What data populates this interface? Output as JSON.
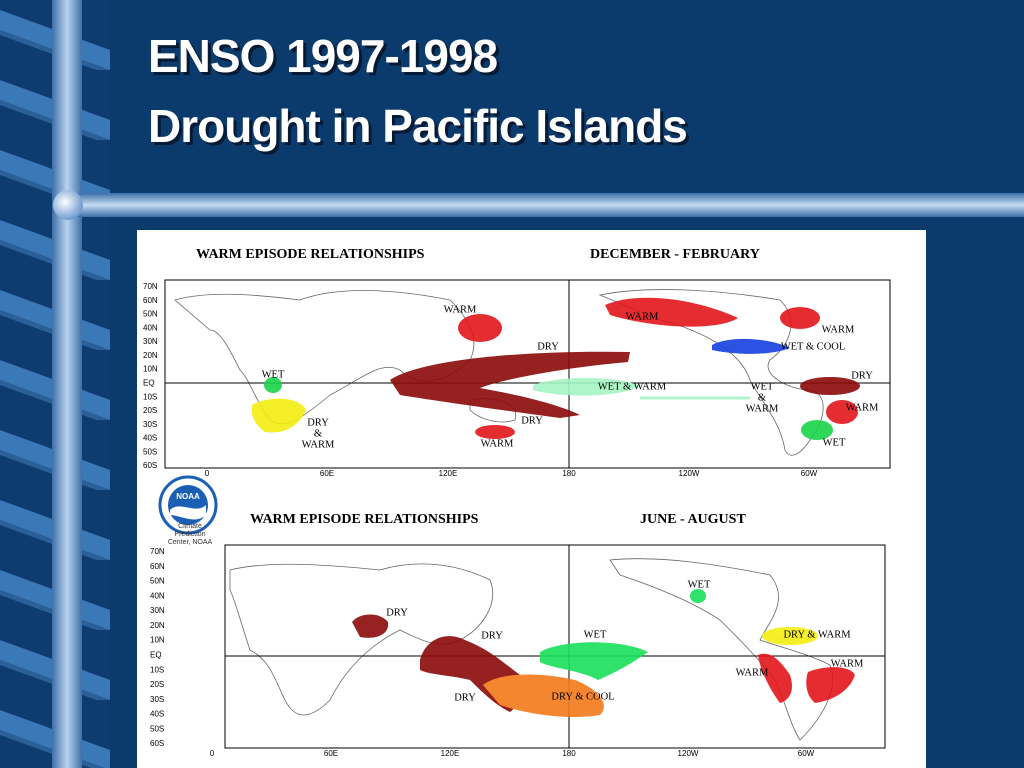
{
  "title": {
    "line1": "ENSO 1997-1998",
    "line2": "Drought in Pacific Islands"
  },
  "logo": {
    "name": "NOAA",
    "caption": [
      "Climate",
      "Prediction",
      "Center, NOAA"
    ]
  },
  "maps": [
    {
      "title": "WARM EPISODE RELATIONSHIPS",
      "season": "DECEMBER - FEBRUARY",
      "latitudes": [
        "70N",
        "60N",
        "50N",
        "40N",
        "30N",
        "20N",
        "10N",
        "EQ",
        "10S",
        "20S",
        "30S",
        "40S",
        "50S",
        "60S"
      ],
      "longitudes": [
        "0",
        "60E",
        "120E",
        "180",
        "120W",
        "60W"
      ],
      "regions": [
        {
          "lines": [
            "WARM"
          ]
        },
        {
          "lines": [
            "DRY"
          ]
        },
        {
          "lines": [
            "WET"
          ]
        },
        {
          "lines": [
            "DRY",
            "&",
            "WARM"
          ]
        },
        {
          "lines": [
            "DRY"
          ]
        },
        {
          "lines": [
            "WARM"
          ]
        },
        {
          "lines": [
            "WARM"
          ]
        },
        {
          "lines": [
            "WARM"
          ]
        },
        {
          "lines": [
            "WET & COOL"
          ]
        },
        {
          "lines": [
            "DRY"
          ]
        },
        {
          "lines": [
            "WET & WARM"
          ]
        },
        {
          "lines": [
            "WET",
            "&",
            "WARM"
          ]
        },
        {
          "lines": [
            "WARM"
          ]
        },
        {
          "lines": [
            "WET"
          ]
        }
      ]
    },
    {
      "title": "WARM EPISODE RELATIONSHIPS",
      "season": "JUNE - AUGUST",
      "latitudes": [
        "70N",
        "60N",
        "50N",
        "40N",
        "30N",
        "20N",
        "10N",
        "EQ",
        "10S",
        "20S",
        "30S",
        "40S",
        "50S",
        "60S"
      ],
      "longitudes": [
        "0",
        "60E",
        "120E",
        "180",
        "120W",
        "60W"
      ],
      "regions": [
        {
          "lines": [
            "DRY"
          ]
        },
        {
          "lines": [
            "DRY"
          ]
        },
        {
          "lines": [
            "WET"
          ]
        },
        {
          "lines": [
            "WET"
          ]
        },
        {
          "lines": [
            "DRY & WARM"
          ]
        },
        {
          "lines": [
            "WARM"
          ]
        },
        {
          "lines": [
            "WARM"
          ]
        },
        {
          "lines": [
            "DRY"
          ]
        },
        {
          "lines": [
            "DRY & COOL"
          ]
        }
      ]
    }
  ]
}
